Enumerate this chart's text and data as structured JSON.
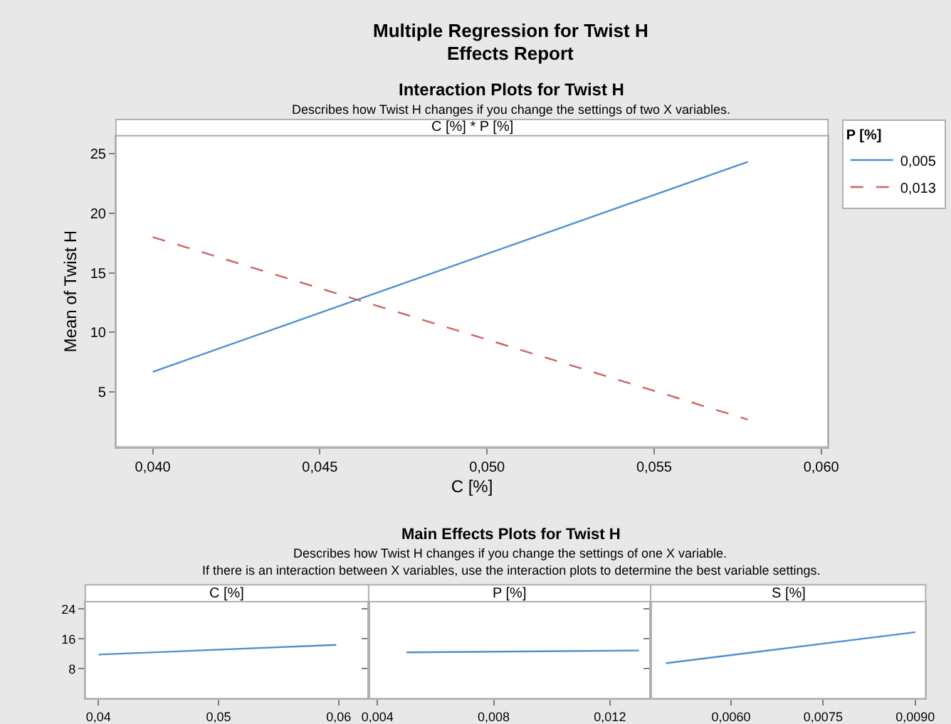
{
  "chart_data": [
    {
      "type": "line",
      "title": "Interaction Plots for Twist H",
      "subtitle": "Describes how Twist H changes if you change the settings of two X variables.",
      "xlabel": "C [%]",
      "ylabel": "Mean of Twist H",
      "legend_title": "P [%]",
      "annotations": [
        "Multiple Regression for Twist H",
        "Effects Report",
        "C [%] * P [%]"
      ],
      "x": [
        0.04,
        0.0578
      ],
      "series": [
        {
          "name": "0,005",
          "color": "#4f8fd0",
          "values": [
            6.7,
            24.3
          ],
          "line_style": "solid"
        },
        {
          "name": "0,013",
          "color": "#d06262",
          "values": [
            18.0,
            2.7
          ],
          "line_style": "dashed"
        }
      ],
      "xlim": [
        0.0389,
        0.0602
      ],
      "ylim": [
        0.4,
        26.5
      ],
      "xticks": [
        {
          "value": 0.04,
          "label": "0,040"
        },
        {
          "value": 0.045,
          "label": "0,045"
        },
        {
          "value": 0.05,
          "label": "0,050"
        },
        {
          "value": 0.055,
          "label": "0,055"
        },
        {
          "value": 0.06,
          "label": "0,060"
        }
      ],
      "yticks": [
        5,
        10,
        15,
        20,
        25
      ],
      "grid": false,
      "legend": "top right"
    },
    {
      "type": "line",
      "title": "C [%]",
      "annotations": [
        "Main Effects Plots for Twist H",
        "Describes how Twist H changes if you change the settings of one X variable.",
        "If there is an interaction between X variables, use the interaction plots to determine the best variable settings."
      ],
      "x": [
        0.04,
        0.0598
      ],
      "series": [
        {
          "color": "#4f8fd0",
          "values": [
            11.8,
            14.4
          ]
        }
      ],
      "xlim": [
        0.0389,
        0.0625
      ],
      "ylim": [
        0,
        26
      ],
      "xticks": [
        {
          "value": 0.04,
          "label": "0,04"
        },
        {
          "value": 0.05,
          "label": "0,05"
        },
        {
          "value": 0.06,
          "label": "0,06"
        }
      ],
      "yticks": [
        8,
        16,
        24
      ],
      "grid": false
    },
    {
      "type": "line",
      "title": "P [%]",
      "x": [
        0.005,
        0.013
      ],
      "series": [
        {
          "color": "#4f8fd0",
          "values": [
            12.4,
            12.9
          ]
        }
      ],
      "xlim": [
        0.0037,
        0.0134
      ],
      "ylim": [
        0,
        26
      ],
      "xticks": [
        {
          "value": 0.004,
          "label": "0,004"
        },
        {
          "value": 0.008,
          "label": "0,008"
        },
        {
          "value": 0.012,
          "label": "0,012"
        }
      ],
      "yticks": [
        8,
        16,
        24
      ],
      "grid": false,
      "tick_labels": "x"
    },
    {
      "type": "line",
      "title": "S [%]",
      "x": [
        0.00494,
        0.009
      ],
      "series": [
        {
          "color": "#4f8fd0",
          "values": [
            9.5,
            17.8
          ]
        }
      ],
      "xlim": [
        0.00469,
        0.00917
      ],
      "ylim": [
        0,
        26
      ],
      "xticks": [
        {
          "value": 0.006,
          "label": "0,0060"
        },
        {
          "value": 0.0075,
          "label": "0,0075"
        },
        {
          "value": 0.009,
          "label": "0,0090"
        }
      ],
      "yticks": [
        8,
        16,
        24
      ],
      "grid": false,
      "tick_labels": "x"
    }
  ]
}
